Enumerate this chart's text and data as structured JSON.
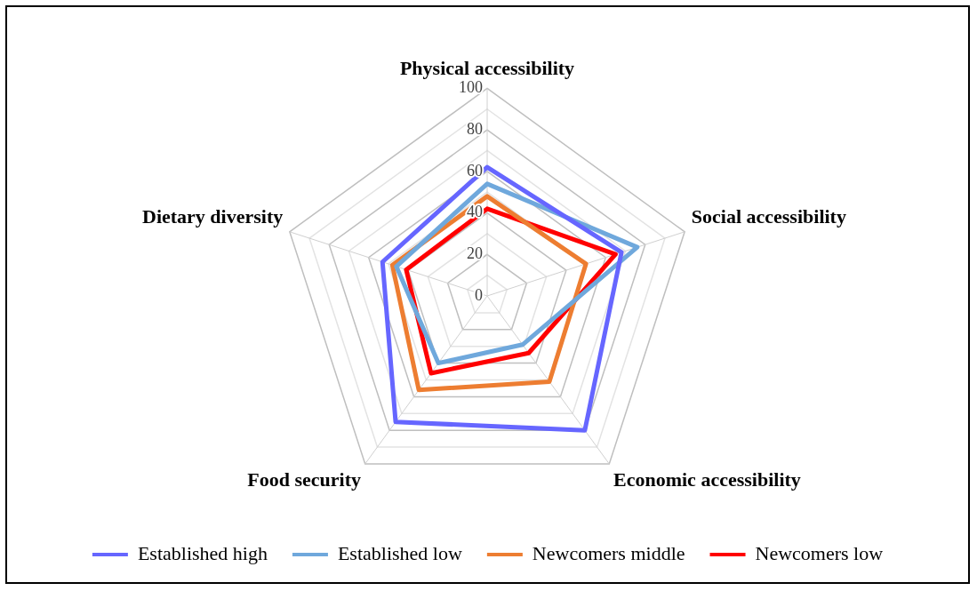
{
  "chart_data": {
    "type": "radar",
    "categories": [
      "Physical accessibility",
      "Social accessibility",
      "Economic accessibility",
      "Food security",
      "Dietary diversity"
    ],
    "series": [
      {
        "name": "Established high",
        "color": "#6666ff",
        "values": [
          62,
          68,
          80,
          75,
          53
        ]
      },
      {
        "name": "Established low",
        "color": "#6fa8dc",
        "values": [
          54,
          76,
          29,
          40,
          46
        ]
      },
      {
        "name": "Newcomers middle",
        "color": "#ed7d31",
        "values": [
          48,
          50,
          51,
          56,
          48
        ]
      },
      {
        "name": "Newcomers low",
        "color": "#ff0000",
        "values": [
          42,
          65,
          34,
          46,
          41
        ]
      }
    ],
    "ylim": [
      0,
      100
    ],
    "yticks": [
      0,
      20,
      40,
      60,
      80,
      100
    ],
    "grid": true,
    "legend": "bottom",
    "marker": "none",
    "line_style": "solid"
  }
}
